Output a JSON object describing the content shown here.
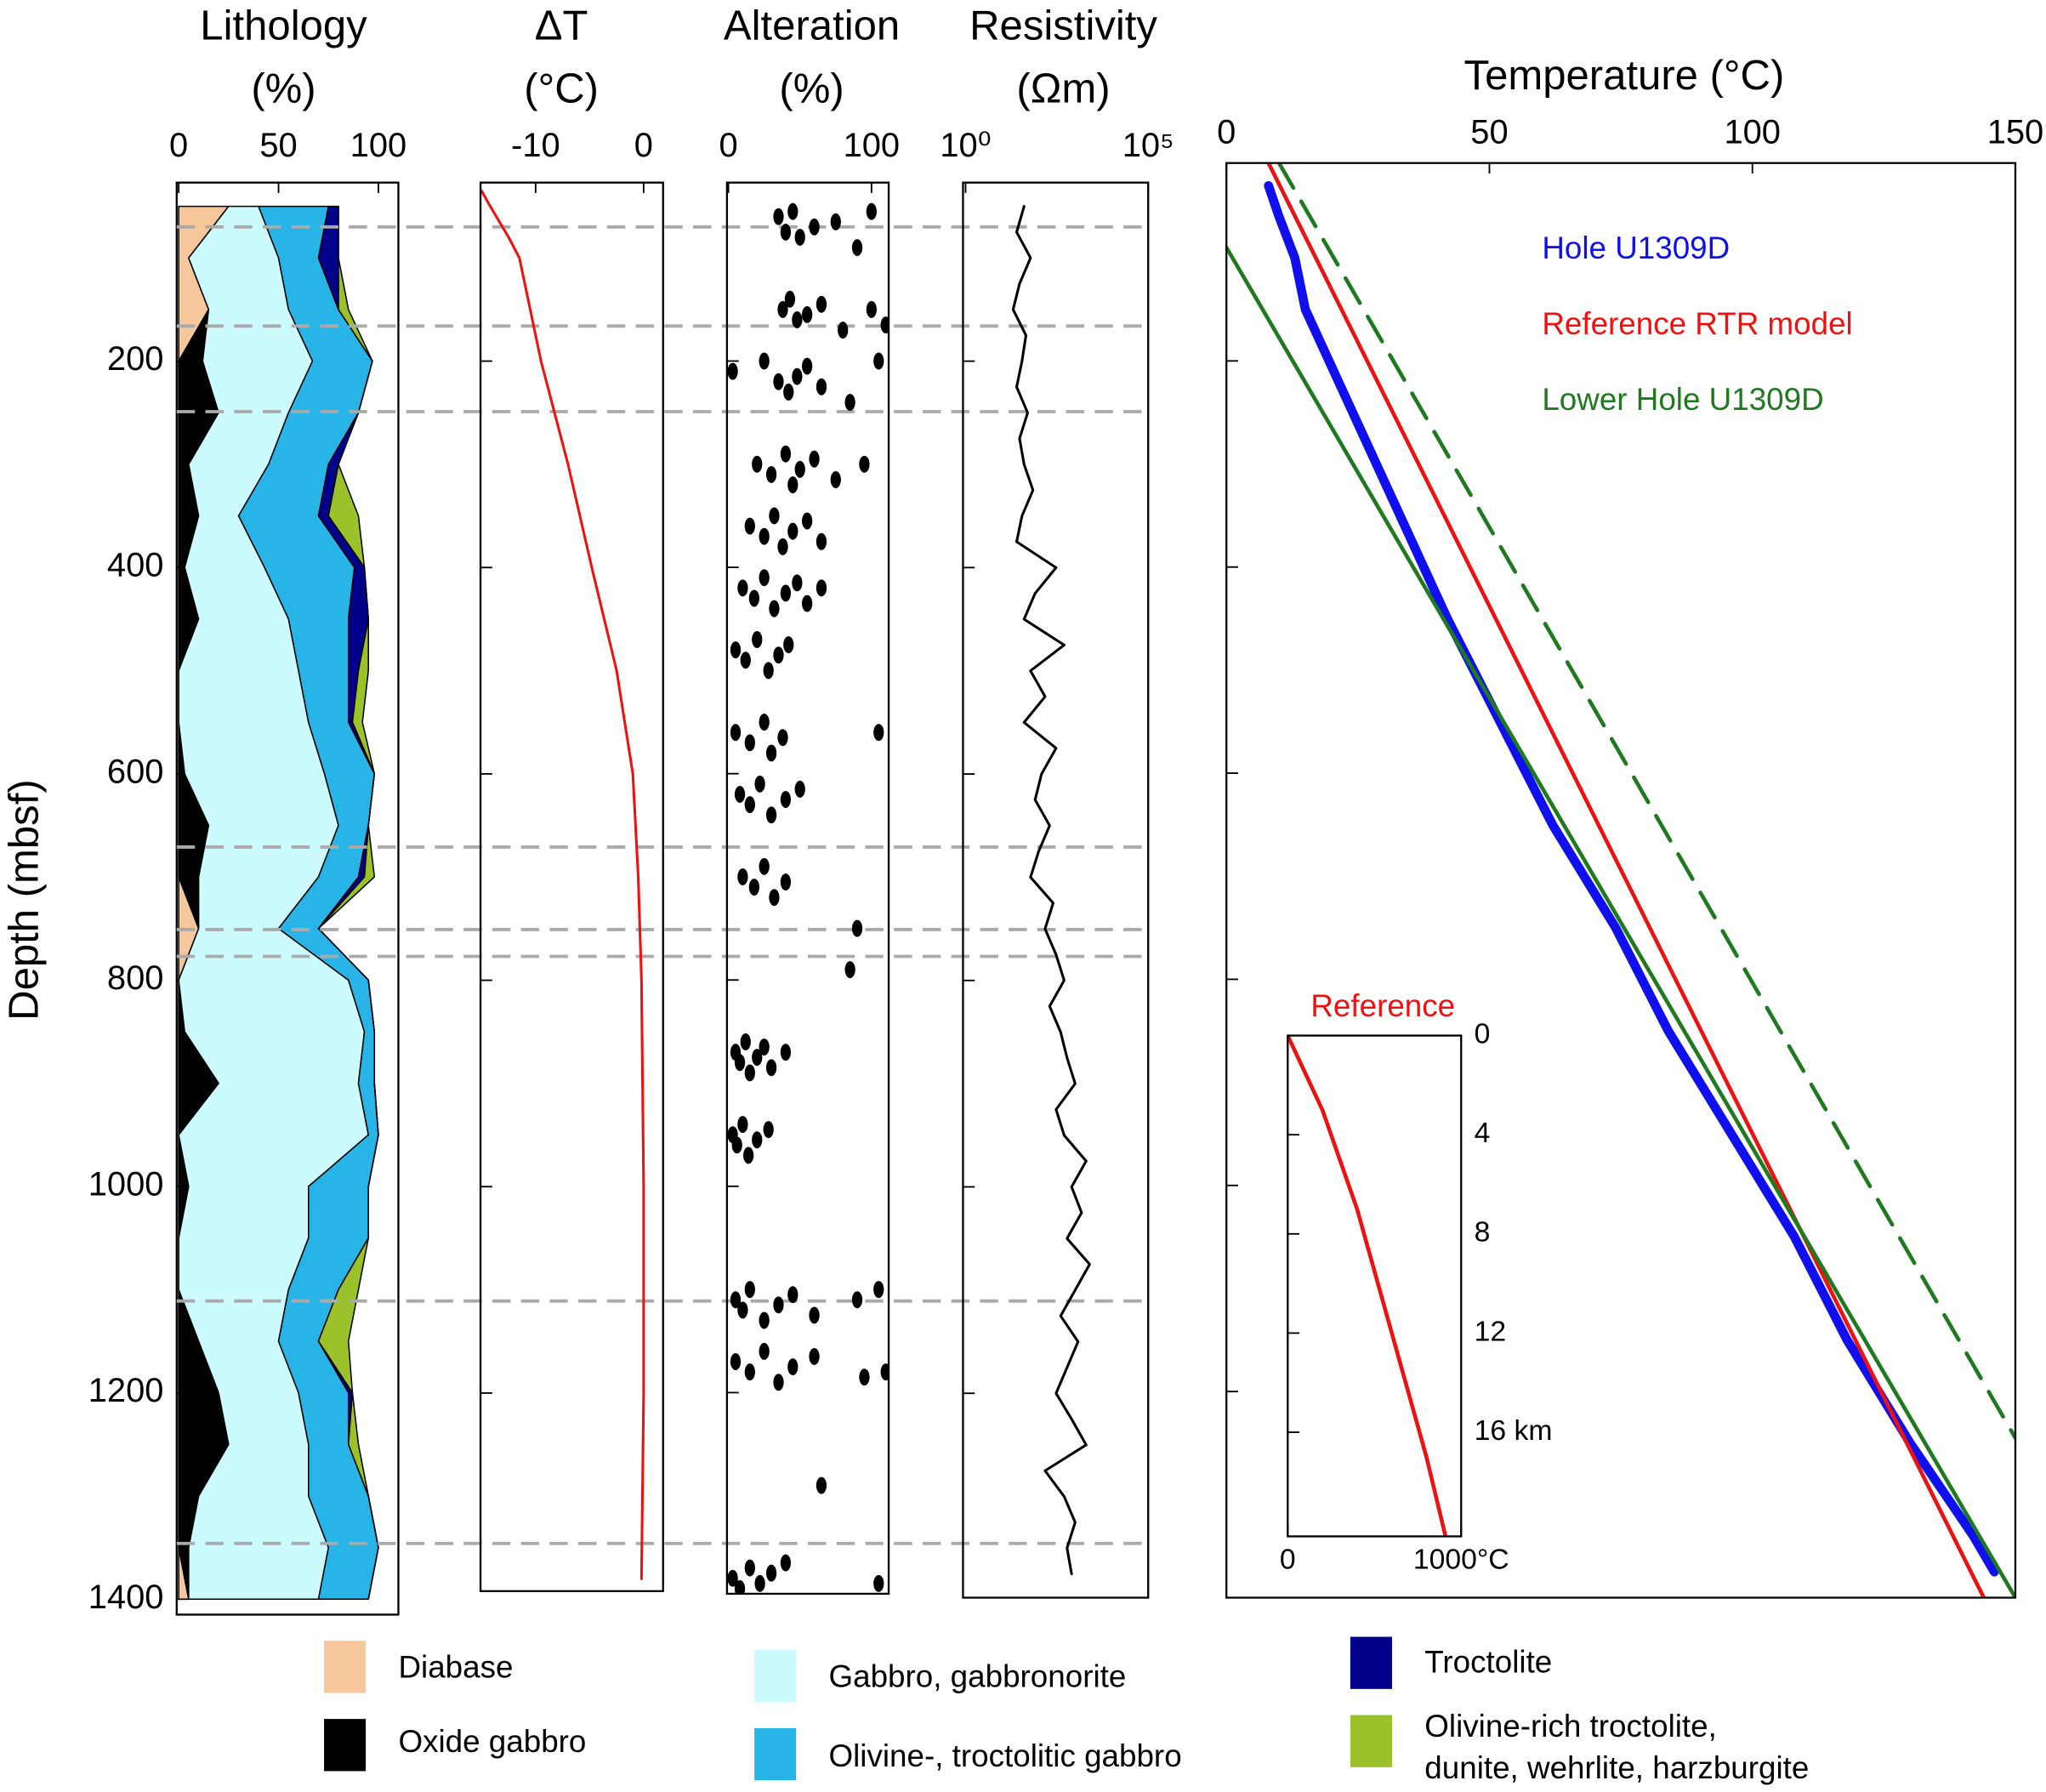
{
  "chart_data": [
    {
      "type": "stacked_area",
      "title": "Lithology\n(%)",
      "ylabel": "Depth (mbsf)",
      "xlim": [
        -1,
        110
      ],
      "xticks": [
        0,
        50,
        100
      ],
      "ylim": [
        27,
        1415
      ],
      "yticks": [
        200,
        400,
        600,
        800,
        1000,
        1200,
        1400
      ],
      "depths": [
        50,
        100,
        150,
        200,
        250,
        300,
        350,
        400,
        450,
        500,
        550,
        600,
        650,
        700,
        750,
        800,
        850,
        900,
        950,
        1000,
        1050,
        1100,
        1150,
        1200,
        1250,
        1300,
        1350,
        1400
      ],
      "series": [
        {
          "name": "Diabase",
          "color": "#f6c79b",
          "values": [
            25,
            5,
            15,
            0,
            0,
            0,
            0,
            0,
            0,
            0,
            0,
            0,
            0,
            0,
            10,
            0,
            0,
            0,
            0,
            0,
            0,
            0,
            0,
            0,
            0,
            0,
            0,
            5
          ]
        },
        {
          "name": "Oxide gabbro",
          "color": "#000000",
          "values": [
            0,
            0,
            0,
            12,
            20,
            5,
            10,
            3,
            10,
            0,
            0,
            3,
            15,
            10,
            0,
            0,
            3,
            20,
            0,
            5,
            0,
            0,
            10,
            20,
            25,
            10,
            5,
            0
          ]
        },
        {
          "name": "Gabbro, gabbronorite",
          "color": "#ccfbff",
          "values": [
            15,
            45,
            40,
            55,
            35,
            40,
            20,
            40,
            45,
            60,
            65,
            70,
            65,
            60,
            40,
            85,
            90,
            70,
            95,
            60,
            65,
            55,
            40,
            40,
            40,
            55,
            70,
            65
          ]
        },
        {
          "name": "Olivine-, troctolitic gabbro",
          "color": "#29b4e8",
          "values": [
            35,
            20,
            25,
            30,
            35,
            30,
            40,
            45,
            30,
            25,
            20,
            25,
            15,
            20,
            20,
            10,
            5,
            8,
            5,
            30,
            30,
            25,
            20,
            25,
            20,
            30,
            25,
            25
          ]
        },
        {
          "name": "Troctolite",
          "color": "#00008b",
          "values": [
            5,
            10,
            0,
            0,
            0,
            5,
            5,
            5,
            10,
            5,
            2,
            0,
            0,
            3,
            0,
            0,
            0,
            0,
            0,
            0,
            0,
            0,
            0,
            2,
            0,
            0,
            0,
            0
          ]
        },
        {
          "name": "Olivine-rich troctolite,\ndunite, wehrlite, harzburgite",
          "color": "#9bc22b",
          "values": [
            0,
            0,
            5,
            0,
            0,
            0,
            15,
            0,
            0,
            5,
            5,
            0,
            0,
            5,
            0,
            0,
            0,
            0,
            0,
            0,
            0,
            10,
            15,
            0,
            5,
            0,
            0,
            0
          ]
        }
      ],
      "depth_markers": [
        70,
        166,
        249,
        671,
        751,
        777,
        1111,
        1346
      ]
    },
    {
      "type": "line",
      "title": "ΔT\n(°C)",
      "xlim": [
        -15.1,
        1.8
      ],
      "xticks": [
        -10,
        0
      ],
      "ylim": [
        27,
        1392
      ],
      "yticks": [
        200,
        400,
        600,
        800,
        1000,
        1200
      ],
      "series": [
        {
          "color": "#ee1111",
          "x": [
            -15,
            -14.2,
            -12.5,
            -11.5,
            -9.5,
            -7,
            -4.8,
            -2.5,
            -1,
            -0.5,
            -0.2,
            0,
            0,
            -0.2
          ],
          "y": [
            35,
            50,
            80,
            100,
            200,
            300,
            400,
            500,
            600,
            700,
            800,
            1000,
            1200,
            1380
          ]
        }
      ]
    },
    {
      "type": "scatter",
      "title": "Alteration\n(%)",
      "xlim": [
        -1,
        112
      ],
      "xticks": [
        0,
        100
      ],
      "ylim": [
        27,
        1395
      ],
      "yticks": [
        200,
        400,
        600,
        800,
        1000,
        1200
      ],
      "color": "#000000",
      "x": [
        35,
        40,
        45,
        50,
        60,
        75,
        90,
        100,
        38,
        43,
        48,
        55,
        65,
        80,
        100,
        110,
        3,
        25,
        35,
        42,
        48,
        55,
        65,
        85,
        105,
        20,
        30,
        40,
        45,
        50,
        60,
        75,
        95,
        15,
        25,
        32,
        38,
        45,
        55,
        65,
        10,
        18,
        25,
        32,
        40,
        48,
        55,
        65,
        5,
        12,
        20,
        28,
        35,
        42,
        5,
        15,
        25,
        30,
        38,
        8,
        15,
        22,
        30,
        40,
        50,
        105,
        10,
        18,
        25,
        32,
        40,
        90,
        85,
        5,
        8,
        12,
        15,
        20,
        25,
        30,
        40,
        3,
        6,
        10,
        14,
        20,
        28,
        5,
        10,
        15,
        25,
        35,
        45,
        60,
        90,
        105,
        5,
        15,
        25,
        35,
        45,
        60,
        95,
        110,
        3,
        8,
        15,
        22,
        30,
        40,
        65,
        105
      ],
      "y": [
        60,
        75,
        55,
        80,
        70,
        65,
        90,
        55,
        150,
        140,
        160,
        155,
        145,
        170,
        150,
        165,
        210,
        200,
        220,
        230,
        215,
        205,
        225,
        240,
        200,
        300,
        310,
        290,
        320,
        305,
        295,
        315,
        300,
        360,
        370,
        350,
        380,
        365,
        355,
        375,
        420,
        430,
        410,
        440,
        425,
        415,
        435,
        420,
        480,
        490,
        470,
        500,
        485,
        475,
        560,
        570,
        550,
        580,
        565,
        620,
        630,
        610,
        640,
        625,
        615,
        560,
        700,
        710,
        690,
        720,
        705,
        750,
        790,
        870,
        880,
        860,
        890,
        875,
        865,
        885,
        870,
        950,
        960,
        940,
        970,
        955,
        945,
        1110,
        1120,
        1100,
        1130,
        1115,
        1105,
        1125,
        1110,
        1100,
        1170,
        1180,
        1160,
        1190,
        1175,
        1165,
        1185,
        1180,
        1380,
        1390,
        1370,
        1385,
        1375,
        1365,
        1290,
        1385
      ]
    },
    {
      "type": "line",
      "title": "Resistivity\n(Ωm)",
      "xscale": "log",
      "xlim": [
        0.85,
        100000
      ],
      "xticks": [
        {
          "value": 1,
          "label": "10⁰"
        },
        {
          "value": 100000,
          "label": "10⁵"
        }
      ],
      "ylim": [
        27,
        1398
      ],
      "yticks": [
        200,
        400,
        600,
        800,
        1000,
        1200
      ],
      "series": [
        {
          "color": "#000000",
          "x": [
            40,
            25,
            60,
            30,
            20,
            45,
            35,
            25,
            50,
            30,
            40,
            70,
            35,
            25,
            300,
            80,
            40,
            500,
            60,
            150,
            40,
            300,
            120,
            80,
            200,
            100,
            60,
            250,
            150,
            300,
            500,
            200,
            400,
            600,
            1000,
            300,
            500,
            2000,
            800,
            1500,
            600,
            2500,
            1000,
            400,
            1200,
            600,
            300,
            800,
            2000,
            150,
            500,
            1000,
            600,
            800
          ],
          "y": [
            50,
            75,
            100,
            125,
            150,
            175,
            200,
            225,
            250,
            275,
            300,
            325,
            350,
            375,
            400,
            425,
            450,
            475,
            500,
            525,
            550,
            575,
            600,
            625,
            650,
            675,
            700,
            725,
            750,
            775,
            800,
            825,
            850,
            875,
            900,
            925,
            950,
            975,
            1000,
            1025,
            1050,
            1075,
            1100,
            1125,
            1150,
            1175,
            1200,
            1225,
            1250,
            1275,
            1300,
            1325,
            1350,
            1375
          ]
        }
      ]
    },
    {
      "type": "line",
      "title": "Temperature (°C)",
      "xlim": [
        0,
        150
      ],
      "xticks": [
        0,
        50,
        100,
        150
      ],
      "ylim": [
        8,
        1400
      ],
      "yticks": [
        200,
        400,
        600,
        800,
        1000,
        1200
      ],
      "series": [
        {
          "name": "Hole U1309D",
          "color": "#1010ee",
          "linewidth": 7,
          "x": [
            8,
            10,
            13,
            15,
            24,
            33,
            42,
            52,
            62,
            74,
            84,
            96,
            108,
            118,
            130,
            142,
            146
          ],
          "y": [
            30,
            60,
            100,
            150,
            250,
            350,
            450,
            550,
            650,
            750,
            850,
            950,
            1050,
            1150,
            1250,
            1340,
            1375
          ]
        },
        {
          "name": "Reference RTR model",
          "color": "#ee1111",
          "linewidth": 3,
          "x": [
            8,
            144
          ],
          "y": [
            8,
            1400
          ]
        },
        {
          "name": "Lower Hole U1309D",
          "color": "#1f7a1f",
          "linewidth": 3,
          "x": [
            0,
            150
          ],
          "y": [
            90,
            1400
          ]
        },
        {
          "color": "#1f7a1f",
          "linewidth": 3,
          "dash": true,
          "x": [
            10,
            150
          ],
          "y": [
            8,
            1245
          ]
        }
      ]
    },
    {
      "type": "line",
      "title": "Reference",
      "xlim": [
        0,
        1000
      ],
      "xticks": [
        0,
        {
          "value": 1000,
          "label": "1000°C"
        }
      ],
      "ylim": [
        0,
        20.2
      ],
      "yticks": [
        0,
        4,
        8,
        12,
        {
          "value": 16,
          "label": "16 km"
        }
      ],
      "series": [
        {
          "color": "#ee1111",
          "linewidth": 3,
          "x": [
            0,
            200,
            400,
            600,
            800,
            910
          ],
          "y": [
            0,
            3,
            7,
            12,
            17,
            20.2
          ]
        }
      ]
    }
  ]
}
